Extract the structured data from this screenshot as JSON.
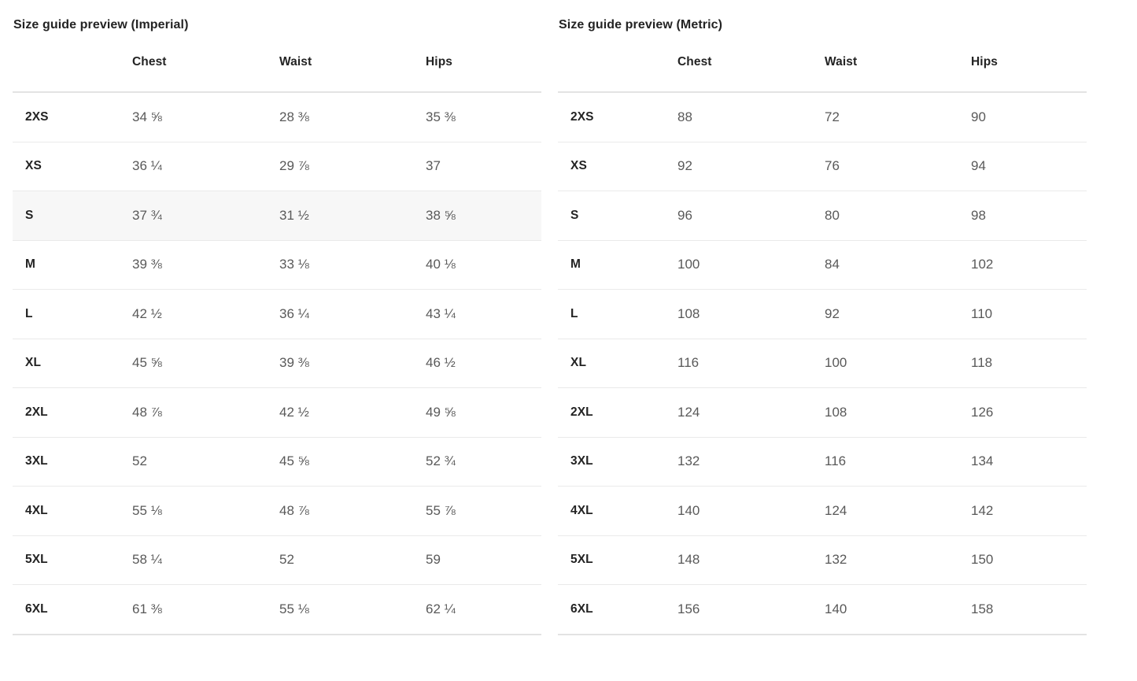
{
  "colors": {
    "heading_text": "#232323",
    "value_text": "#595959",
    "row_divider": "#eaeaea",
    "heavy_divider": "#e3e3e3",
    "highlight_row_bg": "#f7f7f7"
  },
  "tables": [
    {
      "id": "imperial",
      "title": "Size guide preview (Imperial)",
      "columns": [
        "Chest",
        "Waist",
        "Hips"
      ],
      "highlighted_row": "S",
      "rows": [
        {
          "size": "2XS",
          "chest": "34 ⅝",
          "waist": "28 ⅜",
          "hips": "35 ⅜"
        },
        {
          "size": "XS",
          "chest": "36 ¼",
          "waist": "29 ⅞",
          "hips": "37"
        },
        {
          "size": "S",
          "chest": "37 ¾",
          "waist": "31 ½",
          "hips": "38 ⅝"
        },
        {
          "size": "M",
          "chest": "39 ⅜",
          "waist": "33 ⅛",
          "hips": "40 ⅛"
        },
        {
          "size": "L",
          "chest": "42 ½",
          "waist": "36 ¼",
          "hips": "43 ¼"
        },
        {
          "size": "XL",
          "chest": "45 ⅝",
          "waist": "39 ⅜",
          "hips": "46 ½"
        },
        {
          "size": "2XL",
          "chest": "48 ⅞",
          "waist": "42 ½",
          "hips": "49 ⅝"
        },
        {
          "size": "3XL",
          "chest": "52",
          "waist": "45 ⅝",
          "hips": "52 ¾"
        },
        {
          "size": "4XL",
          "chest": "55 ⅛",
          "waist": "48 ⅞",
          "hips": "55 ⅞"
        },
        {
          "size": "5XL",
          "chest": "58 ¼",
          "waist": "52",
          "hips": "59"
        },
        {
          "size": "6XL",
          "chest": "61 ⅜",
          "waist": "55 ⅛",
          "hips": "62 ¼"
        }
      ]
    },
    {
      "id": "metric",
      "title": "Size guide preview (Metric)",
      "columns": [
        "Chest",
        "Waist",
        "Hips"
      ],
      "highlighted_row": null,
      "rows": [
        {
          "size": "2XS",
          "chest": "88",
          "waist": "72",
          "hips": "90"
        },
        {
          "size": "XS",
          "chest": "92",
          "waist": "76",
          "hips": "94"
        },
        {
          "size": "S",
          "chest": "96",
          "waist": "80",
          "hips": "98"
        },
        {
          "size": "M",
          "chest": "100",
          "waist": "84",
          "hips": "102"
        },
        {
          "size": "L",
          "chest": "108",
          "waist": "92",
          "hips": "110"
        },
        {
          "size": "XL",
          "chest": "116",
          "waist": "100",
          "hips": "118"
        },
        {
          "size": "2XL",
          "chest": "124",
          "waist": "108",
          "hips": "126"
        },
        {
          "size": "3XL",
          "chest": "132",
          "waist": "116",
          "hips": "134"
        },
        {
          "size": "4XL",
          "chest": "140",
          "waist": "124",
          "hips": "142"
        },
        {
          "size": "5XL",
          "chest": "148",
          "waist": "132",
          "hips": "150"
        },
        {
          "size": "6XL",
          "chest": "156",
          "waist": "140",
          "hips": "158"
        }
      ]
    }
  ]
}
